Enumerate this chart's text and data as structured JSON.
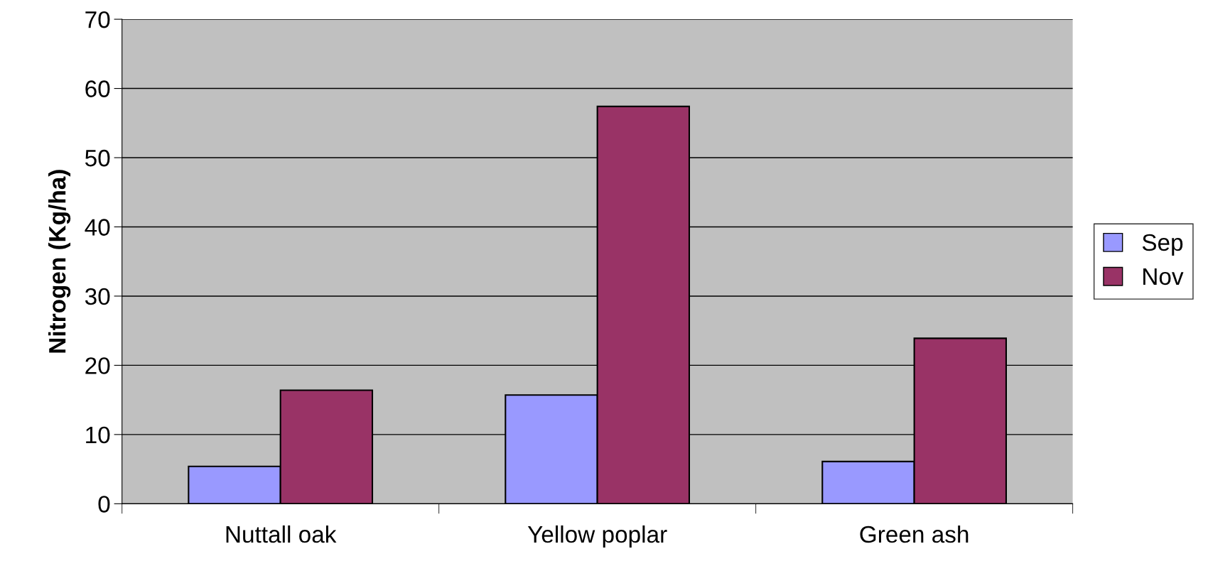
{
  "chart_data": {
    "type": "bar",
    "ylabel": "Nitrogen (Kg/ha)",
    "categories": [
      "Nuttall oak",
      "Yellow poplar",
      "Green ash"
    ],
    "series": [
      {
        "name": "Sep",
        "color": "#9999ff",
        "values": [
          5.4,
          15.7,
          6.1
        ]
      },
      {
        "name": "Nov",
        "color": "#993366",
        "values": [
          16.4,
          57.4,
          23.9
        ]
      }
    ],
    "ylim": [
      0,
      70
    ],
    "yticks": [
      0,
      10,
      20,
      30,
      40,
      50,
      60,
      70
    ],
    "grid": "y",
    "legend": "right"
  }
}
